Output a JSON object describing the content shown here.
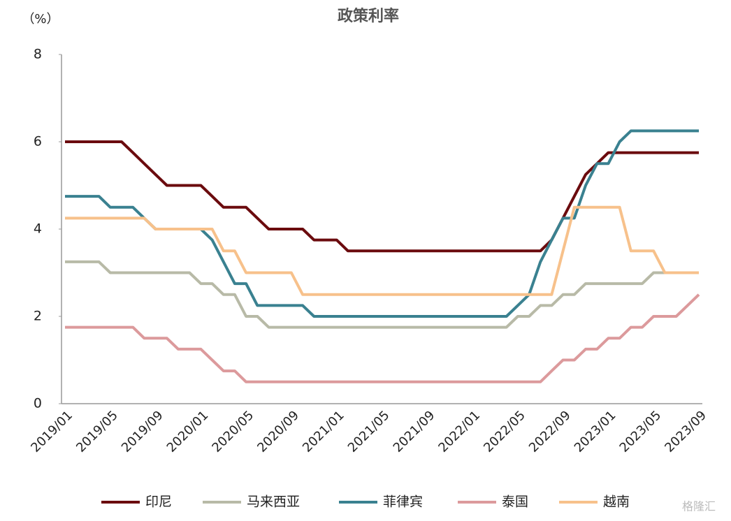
{
  "chart_data": {
    "type": "line",
    "title": "政策利率",
    "y_label": "（%）",
    "watermark": "格隆汇",
    "categories": [
      "2019/01",
      null,
      null,
      null,
      "2019/05",
      null,
      null,
      null,
      "2019/09",
      null,
      null,
      null,
      "2020/01",
      null,
      null,
      null,
      "2020/05",
      null,
      null,
      null,
      "2020/09",
      null,
      null,
      null,
      "2021/01",
      null,
      null,
      null,
      "2021/05",
      null,
      null,
      null,
      "2021/09",
      null,
      null,
      null,
      "2022/01",
      null,
      null,
      null,
      "2022/05",
      null,
      null,
      null,
      "2022/09",
      null,
      null,
      null,
      "2023/01",
      null,
      null,
      null,
      "2023/05",
      null,
      null,
      null,
      "2023/09"
    ],
    "ylim": [
      0,
      8
    ],
    "yticks": [
      0,
      2,
      4,
      6,
      8
    ],
    "grid": false,
    "legend": "bottom",
    "series": [
      {
        "name": "印尼",
        "color": "#6b0b0e",
        "values": [
          6,
          6,
          6,
          6,
          6,
          6,
          5.75,
          5.5,
          5.25,
          5,
          5,
          5,
          5,
          4.75,
          4.5,
          4.5,
          4.5,
          4.25,
          4,
          4,
          4,
          4,
          3.75,
          3.75,
          3.75,
          3.5,
          3.5,
          3.5,
          3.5,
          3.5,
          3.5,
          3.5,
          3.5,
          3.5,
          3.5,
          3.5,
          3.5,
          3.5,
          3.5,
          3.5,
          3.5,
          3.5,
          3.5,
          3.75,
          4.25,
          4.75,
          5.25,
          5.5,
          5.75,
          5.75,
          5.75,
          5.75,
          5.75,
          5.75,
          5.75,
          5.75,
          5.75
        ]
      },
      {
        "name": "马来西亚",
        "color": "#b8baa7",
        "values": [
          3.25,
          3.25,
          3.25,
          3.25,
          3,
          3,
          3,
          3,
          3,
          3,
          3,
          3,
          2.75,
          2.75,
          2.5,
          2.5,
          2,
          2,
          1.75,
          1.75,
          1.75,
          1.75,
          1.75,
          1.75,
          1.75,
          1.75,
          1.75,
          1.75,
          1.75,
          1.75,
          1.75,
          1.75,
          1.75,
          1.75,
          1.75,
          1.75,
          1.75,
          1.75,
          1.75,
          1.75,
          2,
          2,
          2.25,
          2.25,
          2.5,
          2.5,
          2.75,
          2.75,
          2.75,
          2.75,
          2.75,
          2.75,
          3,
          3,
          3,
          3,
          3
        ]
      },
      {
        "name": "菲律宾",
        "color": "#3a8190",
        "values": [
          4.75,
          4.75,
          4.75,
          4.75,
          4.5,
          4.5,
          4.5,
          4.25,
          4,
          4,
          4,
          4,
          4,
          3.75,
          3.25,
          2.75,
          2.75,
          2.25,
          2.25,
          2.25,
          2.25,
          2.25,
          2,
          2,
          2,
          2,
          2,
          2,
          2,
          2,
          2,
          2,
          2,
          2,
          2,
          2,
          2,
          2,
          2,
          2,
          2.25,
          2.5,
          3.25,
          3.75,
          4.25,
          4.25,
          5,
          5.5,
          5.5,
          6,
          6.25,
          6.25,
          6.25,
          6.25,
          6.25,
          6.25,
          6.25
        ]
      },
      {
        "name": "泰国",
        "color": "#dc9a9c",
        "values": [
          1.75,
          1.75,
          1.75,
          1.75,
          1.75,
          1.75,
          1.75,
          1.5,
          1.5,
          1.5,
          1.25,
          1.25,
          1.25,
          1,
          0.75,
          0.75,
          0.5,
          0.5,
          0.5,
          0.5,
          0.5,
          0.5,
          0.5,
          0.5,
          0.5,
          0.5,
          0.5,
          0.5,
          0.5,
          0.5,
          0.5,
          0.5,
          0.5,
          0.5,
          0.5,
          0.5,
          0.5,
          0.5,
          0.5,
          0.5,
          0.5,
          0.5,
          0.5,
          0.75,
          1,
          1,
          1.25,
          1.25,
          1.5,
          1.5,
          1.75,
          1.75,
          2,
          2,
          2,
          2.25,
          2.5
        ]
      },
      {
        "name": "越南",
        "color": "#f7c18b",
        "values": [
          4.25,
          4.25,
          4.25,
          4.25,
          4.25,
          4.25,
          4.25,
          4.25,
          4,
          4,
          4,
          4,
          4,
          4,
          3.5,
          3.5,
          3,
          3,
          3,
          3,
          3,
          2.5,
          2.5,
          2.5,
          2.5,
          2.5,
          2.5,
          2.5,
          2.5,
          2.5,
          2.5,
          2.5,
          2.5,
          2.5,
          2.5,
          2.5,
          2.5,
          2.5,
          2.5,
          2.5,
          2.5,
          2.5,
          2.5,
          2.5,
          3.5,
          4.5,
          4.5,
          4.5,
          4.5,
          4.5,
          3.5,
          3.5,
          3.5,
          3,
          3,
          3,
          3
        ]
      }
    ]
  }
}
